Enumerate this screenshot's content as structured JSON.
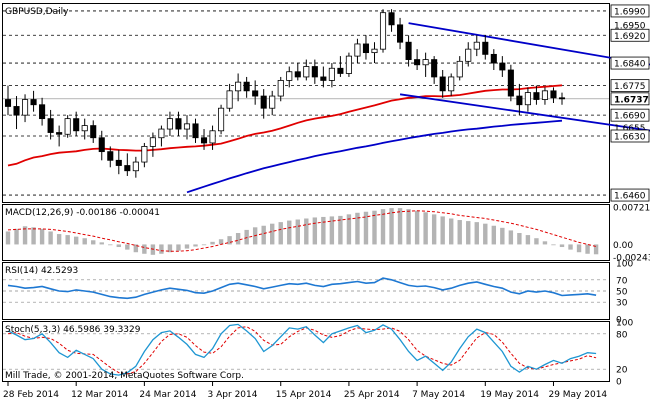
{
  "chart_data": [
    {
      "panel": "main",
      "type": "candlestick",
      "title": "GBPUSD,Daily",
      "ylim": [
        1.644,
        1.701
      ],
      "price_levels": [
        1.699,
        1.695,
        1.692,
        1.684,
        1.6775,
        1.6737,
        1.669,
        1.6655,
        1.663,
        1.646
      ],
      "boxed_levels": [
        1.699,
        1.692,
        1.684,
        1.6775,
        1.669,
        1.663,
        1.646
      ],
      "current_price": 1.6737,
      "dashed_levels": [
        1.699,
        1.692,
        1.684,
        1.6775,
        1.669,
        1.663,
        1.646
      ],
      "candles": [
        {
          "o": 1.6735,
          "h": 1.6775,
          "l": 1.669,
          "c": 1.6715
        },
        {
          "o": 1.6715,
          "h": 1.6745,
          "l": 1.665,
          "c": 1.669
        },
        {
          "o": 1.669,
          "h": 1.675,
          "l": 1.667,
          "c": 1.6735
        },
        {
          "o": 1.6735,
          "h": 1.676,
          "l": 1.67,
          "c": 1.672
        },
        {
          "o": 1.672,
          "h": 1.674,
          "l": 1.666,
          "c": 1.668
        },
        {
          "o": 1.668,
          "h": 1.6705,
          "l": 1.662,
          "c": 1.664
        },
        {
          "o": 1.664,
          "h": 1.666,
          "l": 1.66,
          "c": 1.6635
        },
        {
          "o": 1.6635,
          "h": 1.669,
          "l": 1.6625,
          "c": 1.668
        },
        {
          "o": 1.668,
          "h": 1.67,
          "l": 1.663,
          "c": 1.6645
        },
        {
          "o": 1.6645,
          "h": 1.668,
          "l": 1.662,
          "c": 1.666
        },
        {
          "o": 1.666,
          "h": 1.6675,
          "l": 1.661,
          "c": 1.6625
        },
        {
          "o": 1.6625,
          "h": 1.6645,
          "l": 1.656,
          "c": 1.6585
        },
        {
          "o": 1.6585,
          "h": 1.66,
          "l": 1.654,
          "c": 1.656
        },
        {
          "o": 1.656,
          "h": 1.659,
          "l": 1.652,
          "c": 1.6545
        },
        {
          "o": 1.6545,
          "h": 1.658,
          "l": 1.6515,
          "c": 1.653
        },
        {
          "o": 1.653,
          "h": 1.657,
          "l": 1.651,
          "c": 1.6555
        },
        {
          "o": 1.6555,
          "h": 1.661,
          "l": 1.654,
          "c": 1.66
        },
        {
          "o": 1.66,
          "h": 1.664,
          "l": 1.657,
          "c": 1.6625
        },
        {
          "o": 1.6625,
          "h": 1.666,
          "l": 1.66,
          "c": 1.665
        },
        {
          "o": 1.665,
          "h": 1.67,
          "l": 1.663,
          "c": 1.668
        },
        {
          "o": 1.668,
          "h": 1.67,
          "l": 1.663,
          "c": 1.665
        },
        {
          "o": 1.665,
          "h": 1.669,
          "l": 1.662,
          "c": 1.6665
        },
        {
          "o": 1.6665,
          "h": 1.668,
          "l": 1.661,
          "c": 1.6625
        },
        {
          "o": 1.6625,
          "h": 1.665,
          "l": 1.659,
          "c": 1.661
        },
        {
          "o": 1.661,
          "h": 1.666,
          "l": 1.659,
          "c": 1.6645
        },
        {
          "o": 1.6645,
          "h": 1.672,
          "l": 1.6635,
          "c": 1.671
        },
        {
          "o": 1.671,
          "h": 1.678,
          "l": 1.67,
          "c": 1.676
        },
        {
          "o": 1.676,
          "h": 1.681,
          "l": 1.673,
          "c": 1.6785
        },
        {
          "o": 1.6785,
          "h": 1.68,
          "l": 1.674,
          "c": 1.676
        },
        {
          "o": 1.676,
          "h": 1.679,
          "l": 1.672,
          "c": 1.6745
        },
        {
          "o": 1.6745,
          "h": 1.6765,
          "l": 1.668,
          "c": 1.671
        },
        {
          "o": 1.671,
          "h": 1.676,
          "l": 1.669,
          "c": 1.6745
        },
        {
          "o": 1.6745,
          "h": 1.68,
          "l": 1.673,
          "c": 1.679
        },
        {
          "o": 1.679,
          "h": 1.683,
          "l": 1.677,
          "c": 1.6815
        },
        {
          "o": 1.6815,
          "h": 1.684,
          "l": 1.679,
          "c": 1.68
        },
        {
          "o": 1.68,
          "h": 1.685,
          "l": 1.679,
          "c": 1.683
        },
        {
          "o": 1.683,
          "h": 1.685,
          "l": 1.678,
          "c": 1.68
        },
        {
          "o": 1.68,
          "h": 1.683,
          "l": 1.677,
          "c": 1.679
        },
        {
          "o": 1.679,
          "h": 1.684,
          "l": 1.677,
          "c": 1.6825
        },
        {
          "o": 1.6825,
          "h": 1.686,
          "l": 1.68,
          "c": 1.681
        },
        {
          "o": 1.681,
          "h": 1.687,
          "l": 1.68,
          "c": 1.686
        },
        {
          "o": 1.686,
          "h": 1.691,
          "l": 1.684,
          "c": 1.6895
        },
        {
          "o": 1.6895,
          "h": 1.692,
          "l": 1.685,
          "c": 1.687
        },
        {
          "o": 1.687,
          "h": 1.69,
          "l": 1.684,
          "c": 1.688
        },
        {
          "o": 1.688,
          "h": 1.6995,
          "l": 1.687,
          "c": 1.6985
        },
        {
          "o": 1.6985,
          "h": 1.6995,
          "l": 1.693,
          "c": 1.695
        },
        {
          "o": 1.695,
          "h": 1.697,
          "l": 1.688,
          "c": 1.69
        },
        {
          "o": 1.69,
          "h": 1.692,
          "l": 1.683,
          "c": 1.685
        },
        {
          "o": 1.685,
          "h": 1.688,
          "l": 1.682,
          "c": 1.6835
        },
        {
          "o": 1.6835,
          "h": 1.687,
          "l": 1.68,
          "c": 1.685
        },
        {
          "o": 1.685,
          "h": 1.686,
          "l": 1.678,
          "c": 1.68
        },
        {
          "o": 1.68,
          "h": 1.682,
          "l": 1.674,
          "c": 1.676
        },
        {
          "o": 1.676,
          "h": 1.681,
          "l": 1.6745,
          "c": 1.68
        },
        {
          "o": 1.68,
          "h": 1.686,
          "l": 1.679,
          "c": 1.6845
        },
        {
          "o": 1.6845,
          "h": 1.69,
          "l": 1.683,
          "c": 1.688
        },
        {
          "o": 1.688,
          "h": 1.692,
          "l": 1.686,
          "c": 1.69
        },
        {
          "o": 1.69,
          "h": 1.692,
          "l": 1.685,
          "c": 1.6865
        },
        {
          "o": 1.6865,
          "h": 1.688,
          "l": 1.682,
          "c": 1.684
        },
        {
          "o": 1.684,
          "h": 1.686,
          "l": 1.68,
          "c": 1.682
        },
        {
          "o": 1.682,
          "h": 1.6835,
          "l": 1.673,
          "c": 1.6745
        },
        {
          "o": 1.6745,
          "h": 1.678,
          "l": 1.669,
          "c": 1.672
        },
        {
          "o": 1.672,
          "h": 1.677,
          "l": 1.67,
          "c": 1.6755
        },
        {
          "o": 1.6755,
          "h": 1.6775,
          "l": 1.672,
          "c": 1.6735
        },
        {
          "o": 1.6735,
          "h": 1.677,
          "l": 1.672,
          "c": 1.676
        },
        {
          "o": 1.676,
          "h": 1.677,
          "l": 1.6725,
          "c": 1.674
        },
        {
          "o": 1.674,
          "h": 1.6755,
          "l": 1.672,
          "c": 1.6737
        }
      ],
      "overlays": [
        {
          "kind": "moving-average",
          "color": "#e00000",
          "y": [
            1.6545,
            1.655,
            1.656,
            1.6568,
            1.6572,
            1.6578,
            1.6582,
            1.6584,
            1.6586,
            1.659,
            1.6593,
            1.6594,
            1.6592,
            1.659,
            1.6589,
            1.6588,
            1.6588,
            1.659,
            1.6592,
            1.6595,
            1.6597,
            1.6599,
            1.66,
            1.6602,
            1.6605,
            1.6608,
            1.6615,
            1.6622,
            1.663,
            1.6636,
            1.664,
            1.6645,
            1.6652,
            1.666,
            1.6668,
            1.6675,
            1.668,
            1.6684,
            1.6688,
            1.6693,
            1.67,
            1.6706,
            1.6712,
            1.6718,
            1.6725,
            1.6732,
            1.6736,
            1.674,
            1.6742,
            1.6745,
            1.6745,
            1.6744,
            1.6746,
            1.6748,
            1.6752,
            1.6756,
            1.676,
            1.6762,
            1.6764,
            1.6764,
            1.6765,
            1.6768,
            1.677,
            1.6772,
            1.6774,
            1.6776
          ]
        },
        {
          "kind": "moving-average",
          "color": "#0000c8",
          "y": [
            null,
            null,
            null,
            null,
            null,
            null,
            null,
            null,
            null,
            null,
            null,
            null,
            null,
            null,
            null,
            null,
            null,
            null,
            null,
            null,
            null,
            1.6468,
            1.6476,
            1.6484,
            1.6492,
            1.65,
            1.6508,
            1.6515,
            1.6523,
            1.653,
            1.6537,
            1.6543,
            1.6549,
            1.6555,
            1.6561,
            1.6566,
            1.6572,
            1.6577,
            1.6582,
            1.6586,
            1.6591,
            1.6596,
            1.66,
            1.6605,
            1.661,
            1.6615,
            1.6619,
            1.6624,
            1.6628,
            1.6632,
            1.6636,
            1.6639,
            1.6643,
            1.6646,
            1.6649,
            1.6651,
            1.6654,
            1.6657,
            1.6659,
            1.6662,
            1.6664,
            1.6666,
            1.6668,
            1.667,
            1.6672,
            1.6674
          ]
        }
      ],
      "trendlines": [
        {
          "from": [
            47,
            1.6955
          ],
          "to": [
            70,
            1.684
          ],
          "color": "#0000c8"
        },
        {
          "from": [
            46,
            1.675
          ],
          "to": [
            70,
            1.665
          ],
          "color": "#0000c8"
        }
      ]
    },
    {
      "panel": "macd",
      "type": "bar",
      "title": "MACD(12,26,9) -0.00186 -0.00041",
      "ylim": [
        -0.003,
        0.0076
      ],
      "tick_labels": [
        "0.00721",
        "0.00",
        "-0.00243"
      ],
      "values": [
        0.0025,
        0.003,
        0.0035,
        0.0033,
        0.003,
        0.0025,
        0.002,
        0.0018,
        0.0015,
        0.0012,
        0.0008,
        0.0004,
        0.0,
        -0.0005,
        -0.001,
        -0.0015,
        -0.0018,
        -0.002,
        -0.0018,
        -0.0015,
        -0.0012,
        -0.0008,
        -0.0004,
        0.0,
        0.0005,
        0.001,
        0.0016,
        0.0022,
        0.0028,
        0.0033,
        0.0036,
        0.004,
        0.0043,
        0.0046,
        0.0048,
        0.005,
        0.0052,
        0.0053,
        0.0054,
        0.0055,
        0.0058,
        0.0061,
        0.0063,
        0.0065,
        0.0068,
        0.007,
        0.007,
        0.0068,
        0.0065,
        0.0062,
        0.0058,
        0.0054,
        0.005,
        0.0047,
        0.0045,
        0.0043,
        0.004,
        0.0036,
        0.0032,
        0.0027,
        0.0022,
        0.0018,
        0.0012,
        0.0006,
        0.0,
        -0.0005,
        -0.001,
        -0.0015,
        -0.0018,
        -0.0019
      ],
      "signal": [
        0.0028,
        0.0029,
        0.003,
        0.003,
        0.003,
        0.0029,
        0.0027,
        0.0025,
        0.0022,
        0.0019,
        0.0016,
        0.0012,
        0.0009,
        0.0005,
        0.0002,
        -0.0002,
        -0.0006,
        -0.0009,
        -0.0012,
        -0.0013,
        -0.0013,
        -0.0012,
        -0.001,
        -0.0007,
        -0.0004,
        0.0,
        0.0004,
        0.0008,
        0.0013,
        0.0017,
        0.0021,
        0.0025,
        0.0029,
        0.0032,
        0.0035,
        0.0038,
        0.0041,
        0.0043,
        0.0045,
        0.0047,
        0.0049,
        0.0051,
        0.0053,
        0.0056,
        0.0058,
        0.0061,
        0.0063,
        0.0064,
        0.0065,
        0.0064,
        0.0063,
        0.0061,
        0.0059,
        0.0056,
        0.0054,
        0.0052,
        0.005,
        0.0047,
        0.0044,
        0.0041,
        0.0037,
        0.0033,
        0.0029,
        0.0024,
        0.0019,
        0.0014,
        0.0009,
        0.0004,
        0.0,
        -0.0004
      ],
      "signal_color": "#e00000"
    },
    {
      "panel": "rsi",
      "type": "line",
      "title": "RSI(14) 42.5293",
      "ylim": [
        0,
        100
      ],
      "tick_labels": [
        "100",
        "70",
        "50",
        "30",
        "0"
      ],
      "levels": [
        70,
        50,
        30
      ],
      "values": [
        60,
        58,
        55,
        56,
        58,
        54,
        50,
        49,
        52,
        50,
        48,
        44,
        40,
        38,
        37,
        39,
        44,
        48,
        52,
        55,
        53,
        51,
        47,
        46,
        50,
        56,
        62,
        64,
        61,
        58,
        54,
        57,
        60,
        63,
        62,
        64,
        60,
        58,
        62,
        63,
        65,
        67,
        64,
        65,
        73,
        70,
        65,
        60,
        58,
        59,
        56,
        52,
        55,
        60,
        64,
        66,
        62,
        58,
        55,
        48,
        45,
        50,
        48,
        50,
        47,
        42,
        43,
        44,
        45,
        42.5
      ],
      "color": "#1e78d2"
    },
    {
      "panel": "stoch",
      "type": "line",
      "title": "Stoch(5,3,3) 46.5986 39.3329",
      "ylim": [
        0,
        100
      ],
      "tick_labels": [
        "100",
        "80",
        "20",
        "0"
      ],
      "levels": [
        80,
        20
      ],
      "main": [
        85,
        78,
        70,
        72,
        80,
        65,
        48,
        40,
        52,
        45,
        38,
        20,
        12,
        10,
        14,
        25,
        50,
        70,
        82,
        85,
        74,
        62,
        45,
        40,
        55,
        80,
        94,
        96,
        85,
        72,
        50,
        60,
        75,
        90,
        88,
        92,
        78,
        65,
        80,
        85,
        90,
        94,
        82,
        86,
        95,
        88,
        70,
        50,
        35,
        42,
        30,
        18,
        32,
        55,
        75,
        88,
        82,
        66,
        50,
        25,
        15,
        25,
        20,
        28,
        35,
        30,
        38,
        42,
        48,
        46.6
      ],
      "signal": [
        80,
        82,
        76,
        72,
        74,
        72,
        64,
        52,
        47,
        46,
        45,
        34,
        23,
        14,
        12,
        16,
        30,
        48,
        67,
        79,
        80,
        74,
        60,
        49,
        47,
        58,
        76,
        90,
        92,
        84,
        69,
        61,
        62,
        75,
        84,
        90,
        86,
        78,
        74,
        77,
        85,
        90,
        88,
        87,
        88,
        90,
        84,
        70,
        52,
        42,
        36,
        30,
        27,
        35,
        54,
        73,
        82,
        79,
        66,
        47,
        30,
        22,
        20,
        24,
        28,
        31,
        34,
        37,
        43,
        39.3
      ],
      "main_color": "#1e96d2",
      "signal_color": "#e00000",
      "watermark": "Mill Trade, © 2001-2014, MetaQuotes Software Corp."
    }
  ],
  "x_axis": {
    "tick_labels": [
      "28 Feb 2014",
      "12 Mar 2014",
      "24 Mar 2014",
      "3 Apr 2014",
      "15 Apr 2014",
      "25 Apr 2014",
      "7 May 2014",
      "19 May 2014",
      "29 May 2014"
    ],
    "tick_index": [
      0,
      8,
      16,
      24,
      32,
      40,
      48,
      56,
      64
    ]
  },
  "colors": {
    "background": "#ffffff",
    "grid": "#000000",
    "bull_body": "#ffffff",
    "bear_body": "#000000",
    "axis_text": "#000000"
  }
}
